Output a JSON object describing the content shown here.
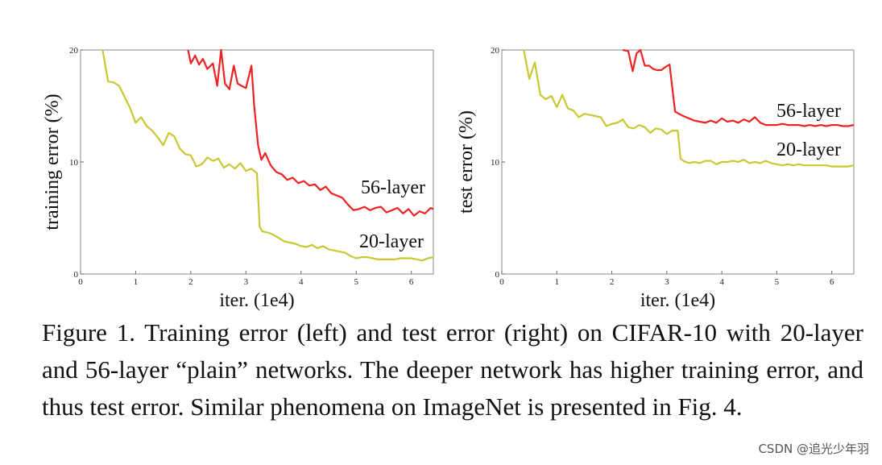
{
  "chart_data": [
    {
      "type": "line",
      "xlabel": "iter. (1e4)",
      "ylabel": "training error (%)",
      "xlim": [
        0,
        6.4
      ],
      "ylim": [
        0,
        20
      ],
      "xticks": [
        0,
        1,
        2,
        3,
        4,
        5,
        6
      ],
      "yticks": [
        0,
        10,
        20
      ],
      "grid": false,
      "series": [
        {
          "name": "56-layer",
          "color": "#ee2222",
          "x": [
            1.95,
            2.0,
            2.08,
            2.15,
            2.22,
            2.3,
            2.4,
            2.48,
            2.55,
            2.62,
            2.7,
            2.78,
            2.85,
            2.92,
            3.0,
            3.1,
            3.15,
            3.22,
            3.28,
            3.35,
            3.45,
            3.55,
            3.65,
            3.75,
            3.85,
            3.95,
            4.05,
            4.15,
            4.25,
            4.35,
            4.45,
            4.55,
            4.65,
            4.75,
            4.85,
            4.95,
            5.05,
            5.15,
            5.25,
            5.35,
            5.45,
            5.55,
            5.65,
            5.75,
            5.85,
            5.95,
            6.05,
            6.15,
            6.25,
            6.35,
            6.4
          ],
          "y": [
            20,
            18.8,
            19.5,
            18.7,
            19.2,
            18.3,
            18.8,
            16.8,
            20.0,
            17.0,
            16.5,
            18.6,
            17.0,
            16.8,
            16.6,
            18.6,
            15.0,
            11.5,
            10.2,
            10.8,
            9.7,
            9.1,
            8.9,
            8.4,
            8.6,
            8.1,
            8.3,
            7.9,
            8.0,
            7.5,
            7.8,
            7.2,
            7.0,
            6.8,
            6.2,
            5.7,
            5.8,
            6.0,
            5.7,
            5.9,
            6.0,
            5.5,
            5.7,
            5.9,
            5.4,
            5.8,
            5.2,
            5.6,
            5.4,
            5.9,
            5.8
          ]
        },
        {
          "name": "20-layer",
          "color": "#c8c832",
          "x": [
            0.4,
            0.5,
            0.6,
            0.7,
            0.8,
            0.9,
            1.0,
            1.1,
            1.2,
            1.3,
            1.4,
            1.5,
            1.6,
            1.7,
            1.8,
            1.9,
            2.0,
            2.1,
            2.2,
            2.3,
            2.4,
            2.5,
            2.6,
            2.7,
            2.8,
            2.9,
            3.0,
            3.1,
            3.2,
            3.25,
            3.3,
            3.4,
            3.5,
            3.6,
            3.7,
            3.8,
            3.9,
            4.0,
            4.1,
            4.2,
            4.3,
            4.4,
            4.5,
            4.6,
            4.7,
            4.8,
            4.9,
            5.0,
            5.1,
            5.2,
            5.3,
            5.4,
            5.5,
            5.6,
            5.7,
            5.8,
            5.9,
            6.0,
            6.1,
            6.2,
            6.3,
            6.4
          ],
          "y": [
            20,
            17.2,
            17.1,
            16.8,
            15.8,
            14.8,
            13.5,
            14.0,
            13.2,
            12.8,
            12.2,
            11.5,
            12.6,
            12.3,
            11.2,
            10.7,
            10.6,
            9.6,
            9.8,
            10.4,
            10.1,
            10.3,
            9.5,
            9.8,
            9.4,
            9.9,
            9.2,
            9.4,
            9.0,
            4.2,
            3.8,
            3.7,
            3.5,
            3.2,
            2.9,
            2.8,
            2.7,
            2.5,
            2.4,
            2.6,
            2.3,
            2.5,
            2.2,
            2.1,
            2.0,
            1.9,
            1.6,
            1.4,
            1.5,
            1.5,
            1.4,
            1.3,
            1.3,
            1.3,
            1.3,
            1.4,
            1.4,
            1.4,
            1.3,
            1.2,
            1.4,
            1.5
          ]
        }
      ]
    },
    {
      "type": "line",
      "xlabel": "iter. (1e4)",
      "ylabel": "test error (%)",
      "xlim": [
        0,
        6.4
      ],
      "ylim": [
        0,
        20
      ],
      "xticks": [
        0,
        1,
        2,
        3,
        4,
        5,
        6
      ],
      "yticks": [
        0,
        10,
        20
      ],
      "grid": false,
      "series": [
        {
          "name": "56-layer",
          "color": "#ee2222",
          "x": [
            2.2,
            2.3,
            2.38,
            2.45,
            2.52,
            2.6,
            2.68,
            2.75,
            2.82,
            2.9,
            2.98,
            3.05,
            3.15,
            3.22,
            3.3,
            3.4,
            3.5,
            3.6,
            3.7,
            3.8,
            3.9,
            4.0,
            4.1,
            4.2,
            4.3,
            4.4,
            4.5,
            4.6,
            4.7,
            4.8,
            4.9,
            5.0,
            5.1,
            5.2,
            5.3,
            5.4,
            5.5,
            5.6,
            5.7,
            5.8,
            5.9,
            6.0,
            6.1,
            6.2,
            6.3,
            6.4
          ],
          "y": [
            20,
            19.9,
            18.1,
            19.7,
            20.0,
            18.6,
            18.6,
            18.3,
            18.2,
            18.2,
            18.5,
            18.7,
            14.5,
            14.3,
            14.1,
            13.9,
            13.7,
            13.6,
            13.5,
            13.7,
            13.5,
            13.9,
            13.6,
            13.7,
            13.5,
            13.8,
            13.6,
            14.0,
            13.5,
            13.3,
            13.3,
            13.3,
            13.4,
            13.3,
            13.3,
            13.3,
            13.2,
            13.3,
            13.2,
            13.3,
            13.2,
            13.3,
            13.3,
            13.2,
            13.2,
            13.3
          ],
          "flat_from": 0
        },
        {
          "name": "20-layer",
          "color": "#c8c832",
          "x": [
            0.4,
            0.5,
            0.6,
            0.7,
            0.8,
            0.9,
            1.0,
            1.1,
            1.2,
            1.3,
            1.4,
            1.5,
            1.6,
            1.7,
            1.8,
            1.9,
            2.0,
            2.1,
            2.2,
            2.3,
            2.4,
            2.5,
            2.6,
            2.7,
            2.8,
            2.9,
            3.0,
            3.1,
            3.2,
            3.25,
            3.3,
            3.4,
            3.5,
            3.6,
            3.7,
            3.8,
            3.9,
            4.0,
            4.1,
            4.2,
            4.3,
            4.4,
            4.5,
            4.6,
            4.7,
            4.8,
            4.9,
            5.0,
            5.1,
            5.2,
            5.3,
            5.4,
            5.5,
            5.6,
            5.7,
            5.8,
            5.9,
            6.0,
            6.1,
            6.2,
            6.3,
            6.4
          ],
          "y": [
            20,
            17.4,
            18.9,
            16.0,
            15.6,
            15.9,
            14.9,
            16.0,
            14.8,
            14.6,
            14.0,
            14.3,
            14.2,
            14.1,
            14.0,
            13.2,
            13.4,
            13.5,
            13.8,
            13.1,
            13.0,
            13.3,
            13.1,
            12.6,
            13.0,
            12.9,
            12.5,
            12.8,
            12.8,
            10.3,
            10.1,
            9.9,
            10.0,
            9.9,
            10.1,
            10.1,
            9.8,
            10.0,
            10.0,
            10.1,
            10.0,
            10.2,
            9.9,
            10.0,
            9.9,
            10.1,
            9.9,
            9.8,
            9.7,
            9.8,
            9.7,
            9.8,
            9.7,
            9.7,
            9.7,
            9.7,
            9.7,
            9.6,
            9.6,
            9.6,
            9.6,
            9.7
          ]
        }
      ]
    }
  ],
  "caption": "Figure 1. Training error (left) and test error (right) on CIFAR-10 with 20-layer and 56-layer “plain” networks. The deeper network has higher training error, and thus test error. Similar phenomena on ImageNet is presented in Fig. 4.",
  "watermark": "CSDN @追光少年羽"
}
